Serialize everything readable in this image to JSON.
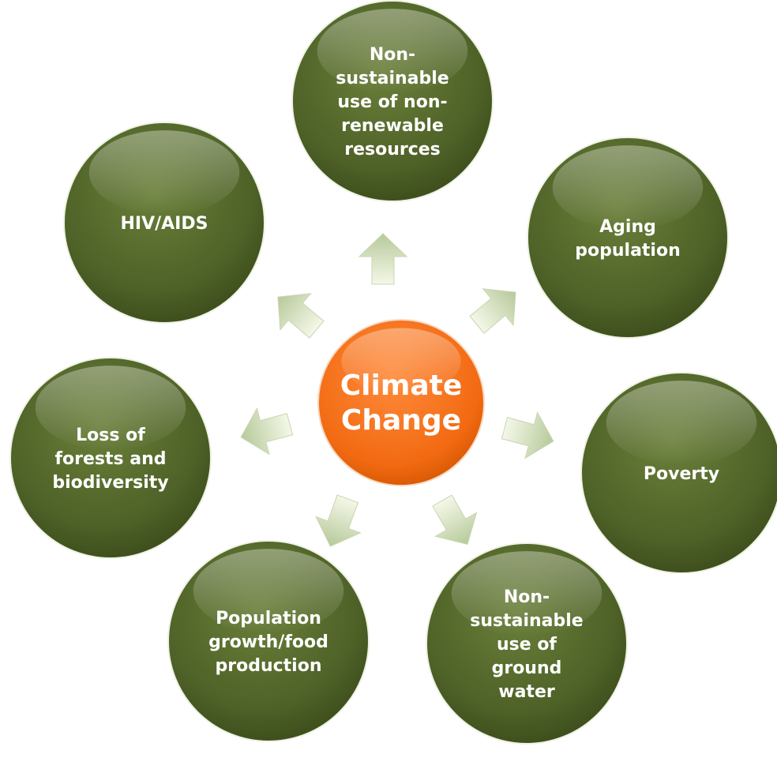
{
  "center": {
    "lines": [
      "Climate",
      "Change"
    ]
  },
  "nodes": [
    {
      "lines": [
        "Non-",
        "sustainable",
        "use of non-",
        "renewable",
        "resources"
      ]
    },
    {
      "lines": [
        "Aging",
        "population"
      ]
    },
    {
      "lines": [
        "Poverty"
      ]
    },
    {
      "lines": [
        "Non-",
        "sustainable",
        "use of",
        "ground",
        "water"
      ]
    },
    {
      "lines": [
        "Population",
        "growth/food",
        "production"
      ]
    },
    {
      "lines": [
        "Loss of",
        "forests and",
        "biodiversity"
      ]
    },
    {
      "lines": [
        "HIV/AIDS"
      ]
    }
  ]
}
